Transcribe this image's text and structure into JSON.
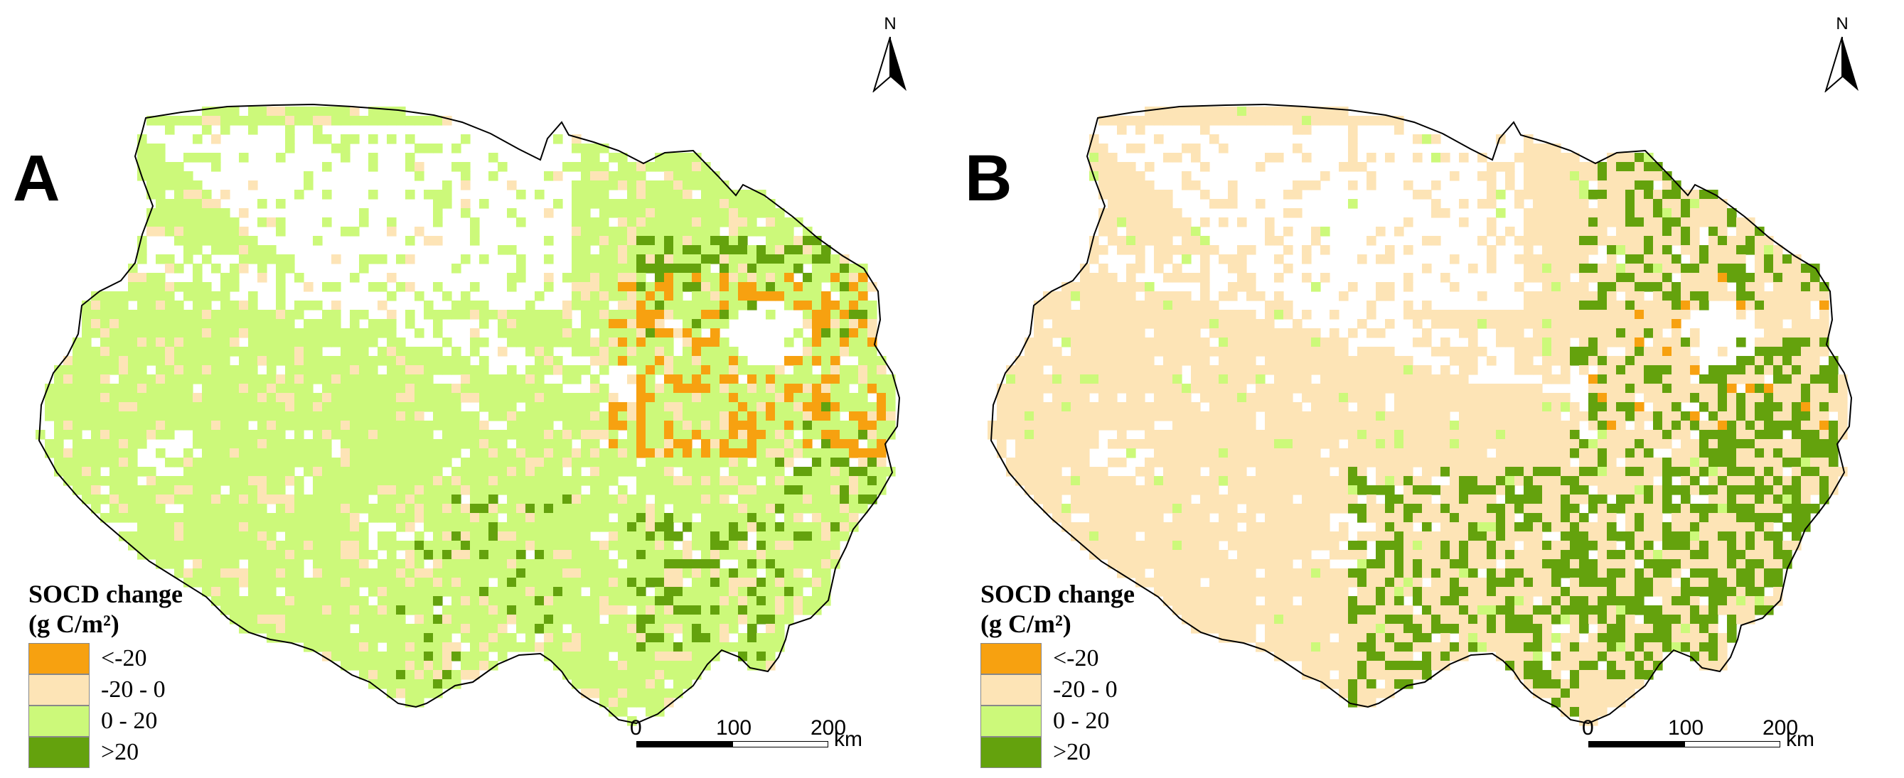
{
  "colors": {
    "lt_neg20": "#f7a110",
    "neg20_0": "#fde4b6",
    "p0_20": "#ccf97a",
    "gt20": "#64a20d",
    "outline": "#000000",
    "background": "#ffffff"
  },
  "north_label": "N",
  "panels": [
    {
      "label": "A",
      "legend": {
        "title_line1": "SOCD change",
        "title_line2": "(g C/m²)",
        "items": [
          {
            "label": "<-20",
            "class": "lt_neg20"
          },
          {
            "label": "-20 - 0",
            "class": "neg20_0"
          },
          {
            "label": "0 - 20",
            "class": "p0_20"
          },
          {
            "label": ">20",
            "class": "gt20"
          }
        ]
      },
      "scale_bar": {
        "ticks": [
          "0",
          "100",
          "200"
        ],
        "unit": "km"
      }
    },
    {
      "label": "B",
      "legend": {
        "title_line1": "SOCD change",
        "title_line2": "(g C/m²)",
        "items": [
          {
            "label": "<-20",
            "class": "lt_neg20"
          },
          {
            "label": "-20 - 0",
            "class": "neg20_0"
          },
          {
            "label": "0 - 20",
            "class": "p0_20"
          },
          {
            "label": ">20",
            "class": "gt20"
          }
        ]
      },
      "scale_bar": {
        "ticks": [
          "0",
          "100",
          "200"
        ],
        "unit": "km"
      }
    }
  ]
}
